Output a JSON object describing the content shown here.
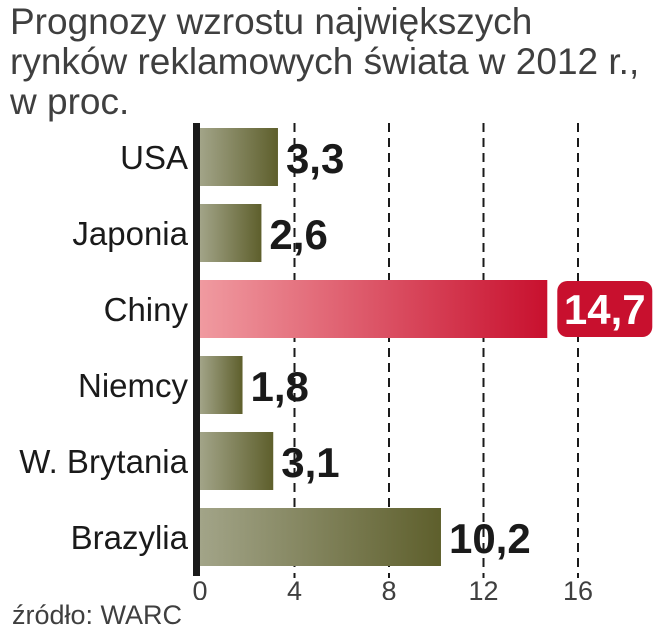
{
  "title": {
    "line1": "Prognozy wzrostu największych",
    "line2": "rynków reklamowych świata w 2012 r.,",
    "line3": "w proc."
  },
  "source": "źródło: WARC",
  "chart_data": {
    "type": "bar",
    "orientation": "horizontal",
    "categories": [
      "USA",
      "Japonia",
      "Chiny",
      "Niemcy",
      "W. Brytania",
      "Brazylia"
    ],
    "values": [
      3.3,
      2.6,
      14.7,
      1.8,
      3.1,
      10.2
    ],
    "value_labels": [
      "3,3",
      "2,6",
      "14,7",
      "1,8",
      "3,1",
      "10,2"
    ],
    "highlight_category": "Chiny",
    "xlim": [
      0,
      16
    ],
    "xticks": [
      0,
      4,
      8,
      12,
      16
    ],
    "grid": "vertical dashed",
    "colors": {
      "bar": "#5e5f2c",
      "bar_light": "#a2a488",
      "highlight": "#c8102e",
      "highlight_light": "#f09aa0",
      "text": "#1a1a1a"
    }
  }
}
